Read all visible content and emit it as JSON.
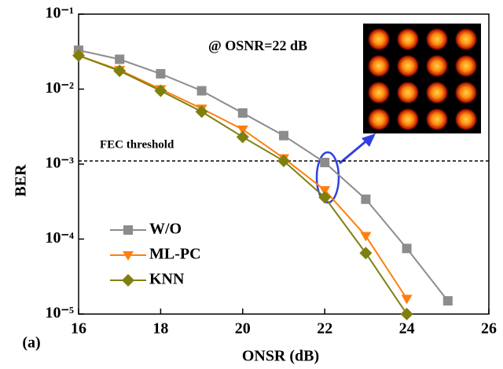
{
  "chart_data": {
    "type": "line",
    "log_y": true,
    "x_label": "ONSR (dB)",
    "y_label": "BER",
    "x": [
      16,
      17,
      18,
      19,
      20,
      21,
      22,
      23,
      24,
      25
    ],
    "series": [
      {
        "name": "W/O",
        "color": "#8c8c8c",
        "marker": "square",
        "values": [
          0.033,
          0.025,
          0.016,
          0.0095,
          0.0048,
          0.0024,
          0.00105,
          0.00034,
          7.5e-05,
          1.5e-05
        ]
      },
      {
        "name": "ML-PC",
        "color": "#ff7f0e",
        "marker": "triangle-down",
        "values": [
          0.028,
          0.018,
          0.01,
          0.0055,
          0.0029,
          0.0012,
          0.00045,
          0.00011,
          1.6e-05,
          null
        ]
      },
      {
        "name": "KNN",
        "color": "#7f7f10",
        "marker": "diamond",
        "values": [
          0.028,
          0.0175,
          0.0095,
          0.005,
          0.0023,
          0.0011,
          0.00036,
          6.5e-05,
          1e-05,
          null
        ]
      }
    ],
    "threshold": 0.0011,
    "threshold_label": "FEC threshold",
    "inset_label": "@ OSNR=22 dB",
    "panel_label": "(a)",
    "xlim": [
      16,
      26
    ],
    "xticks": [
      16,
      18,
      20,
      22,
      24,
      26
    ],
    "ylim": [
      1e-05,
      0.1
    ],
    "yticks": [
      {
        "value": 0.1,
        "label": "10⁻¹"
      },
      {
        "value": 0.01,
        "label": "10⁻²"
      },
      {
        "value": 0.001,
        "label": "10⁻³"
      },
      {
        "value": 0.0001,
        "label": "10⁻⁴"
      },
      {
        "value": 1e-05,
        "label": "10⁻⁵"
      }
    ],
    "legend": "lower left"
  }
}
